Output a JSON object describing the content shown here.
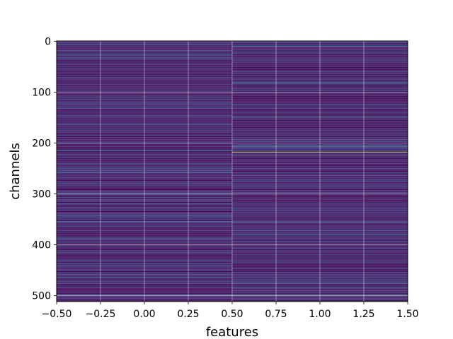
{
  "chart_data": {
    "type": "heatmap",
    "xlabel": "features",
    "ylabel": "channels",
    "xlim": [
      -0.5,
      1.5
    ],
    "ylim": [
      511.5,
      -0.5
    ],
    "x_ticks": [
      -0.5,
      -0.25,
      0.0,
      0.25,
      0.5,
      0.75,
      1.0,
      1.25,
      1.5
    ],
    "x_tick_labels": [
      "−0.50",
      "−0.25",
      "0.00",
      "0.25",
      "0.50",
      "0.75",
      "1.00",
      "1.25",
      "1.50"
    ],
    "y_ticks": [
      0,
      100,
      200,
      300,
      400,
      500
    ],
    "y_tick_labels": [
      "0",
      "100",
      "200",
      "300",
      "400",
      "500"
    ],
    "grid": true,
    "colormap": "viridis",
    "columns": 2,
    "rows": 512,
    "highlights": [
      {
        "column": 0,
        "row": 26,
        "value": 0.45
      },
      {
        "column": 0,
        "row": 215,
        "value": 0.42
      },
      {
        "column": 0,
        "row": 276,
        "value": 0.3
      },
      {
        "column": 0,
        "row": 320,
        "value": 0.35
      },
      {
        "column": 0,
        "row": 395,
        "value": 0.3
      },
      {
        "column": 0,
        "row": 416,
        "value": 0.45
      },
      {
        "column": 0,
        "row": 464,
        "value": 0.38
      },
      {
        "column": 1,
        "row": 10,
        "value": 0.4
      },
      {
        "column": 1,
        "row": 37,
        "value": 0.4
      },
      {
        "column": 1,
        "row": 82,
        "value": 0.35
      },
      {
        "column": 1,
        "row": 148,
        "value": 0.55
      },
      {
        "column": 1,
        "row": 205,
        "value": 0.35
      },
      {
        "column": 1,
        "row": 218,
        "value": 0.95
      },
      {
        "column": 1,
        "row": 380,
        "value": 0.45
      },
      {
        "column": 1,
        "row": 435,
        "value": 0.5
      },
      {
        "column": 1,
        "row": 498,
        "value": 0.35
      }
    ]
  }
}
